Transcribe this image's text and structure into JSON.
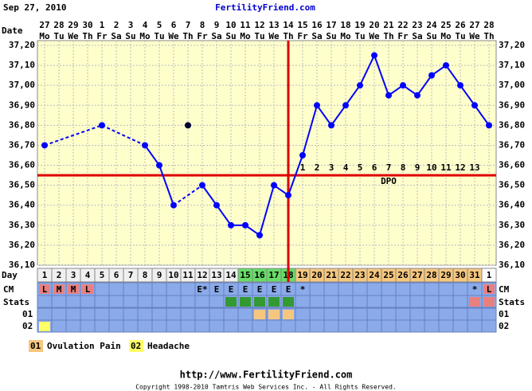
{
  "header": {
    "date": "Sep 27, 2010",
    "site": "FertilityFriend.com"
  },
  "chart_data": {
    "type": "line",
    "x_label": "Date",
    "dates": [
      "27",
      "28",
      "29",
      "30",
      "1",
      "2",
      "3",
      "4",
      "5",
      "6",
      "7",
      "8",
      "9",
      "10",
      "11",
      "12",
      "13",
      "14",
      "15",
      "16",
      "17",
      "18",
      "19",
      "20",
      "21",
      "22",
      "23",
      "24",
      "25",
      "26",
      "27",
      "28"
    ],
    "weekdays": [
      "Mo",
      "Tu",
      "We",
      "Th",
      "Fr",
      "Sa",
      "Su",
      "Mo",
      "Tu",
      "We",
      "Th",
      "Fr",
      "Sa",
      "Su",
      "Mo",
      "Tu",
      "We",
      "Th",
      "Fr",
      "Sa",
      "Su",
      "Mo",
      "Tu",
      "We",
      "Th",
      "Fr",
      "Sa",
      "Su",
      "Mo",
      "Tu",
      "We",
      "Th"
    ],
    "ylim": [
      36.1,
      37.2
    ],
    "yticks": [
      {
        "value": 36.1,
        "label": "36,10"
      },
      {
        "value": 36.2,
        "label": "36,20"
      },
      {
        "value": 36.3,
        "label": "36,30"
      },
      {
        "value": 36.4,
        "label": "36,40"
      },
      {
        "value": 36.5,
        "label": "36,50"
      },
      {
        "value": 36.6,
        "label": "36,60"
      },
      {
        "value": 36.7,
        "label": "36,70"
      },
      {
        "value": 36.8,
        "label": "36,80"
      },
      {
        "value": 36.9,
        "label": "36,90"
      },
      {
        "value": 37.0,
        "label": "37,00"
      },
      {
        "value": 37.1,
        "label": "37,10"
      },
      {
        "value": 37.2,
        "label": "37,20"
      }
    ],
    "grid": true,
    "color": "#0000ff",
    "values": [
      36.7,
      null,
      null,
      null,
      36.8,
      null,
      null,
      36.7,
      36.6,
      36.4,
      null,
      36.5,
      36.4,
      36.3,
      36.3,
      36.25,
      36.5,
      36.45,
      36.65,
      36.9,
      36.8,
      36.9,
      37.0,
      37.15,
      36.95,
      37.0,
      36.95,
      37.05,
      37.1,
      37.0,
      36.9,
      36.8
    ],
    "discarded_values": [
      null,
      null,
      null,
      null,
      null,
      null,
      null,
      null,
      null,
      null,
      36.8,
      null,
      null,
      null,
      null,
      null,
      null,
      null,
      null,
      null,
      null,
      null,
      null,
      null,
      null,
      null,
      null,
      null,
      null,
      null,
      null,
      null
    ],
    "coverline": 36.55,
    "ovulation_day": 18,
    "dpo": [
      null,
      null,
      null,
      null,
      null,
      null,
      null,
      null,
      null,
      null,
      null,
      null,
      null,
      null,
      null,
      null,
      null,
      null,
      1,
      2,
      3,
      4,
      5,
      6,
      7,
      8,
      9,
      10,
      11,
      12,
      13,
      null
    ],
    "dpo_label": "DPO"
  },
  "rows": {
    "day_label": "Day",
    "cycle_days": [
      1,
      2,
      3,
      4,
      5,
      6,
      7,
      8,
      9,
      10,
      11,
      12,
      13,
      14,
      15,
      16,
      17,
      18,
      19,
      20,
      21,
      22,
      23,
      24,
      25,
      26,
      27,
      28,
      29,
      30,
      31,
      1
    ],
    "cm_label": "CM",
    "cm": [
      "L",
      "M",
      "M",
      "L",
      null,
      null,
      null,
      null,
      null,
      null,
      null,
      "E*",
      "E",
      "E",
      "E",
      "E",
      "E",
      "E",
      "*",
      null,
      null,
      null,
      null,
      null,
      null,
      null,
      null,
      null,
      null,
      null,
      "*",
      "L"
    ],
    "stats_label": "Stats",
    "row1_label": "01",
    "row2_label": "02"
  },
  "legend": [
    {
      "code": "01",
      "text": "Ovulation Pain"
    },
    {
      "code": "02",
      "text": "Headache"
    }
  ],
  "footer": {
    "url": "http://www.FertilityFriend.com",
    "copyright": "Copyright 1998-2010 Tamtris Web Services Inc. - All Rights Reserved."
  }
}
